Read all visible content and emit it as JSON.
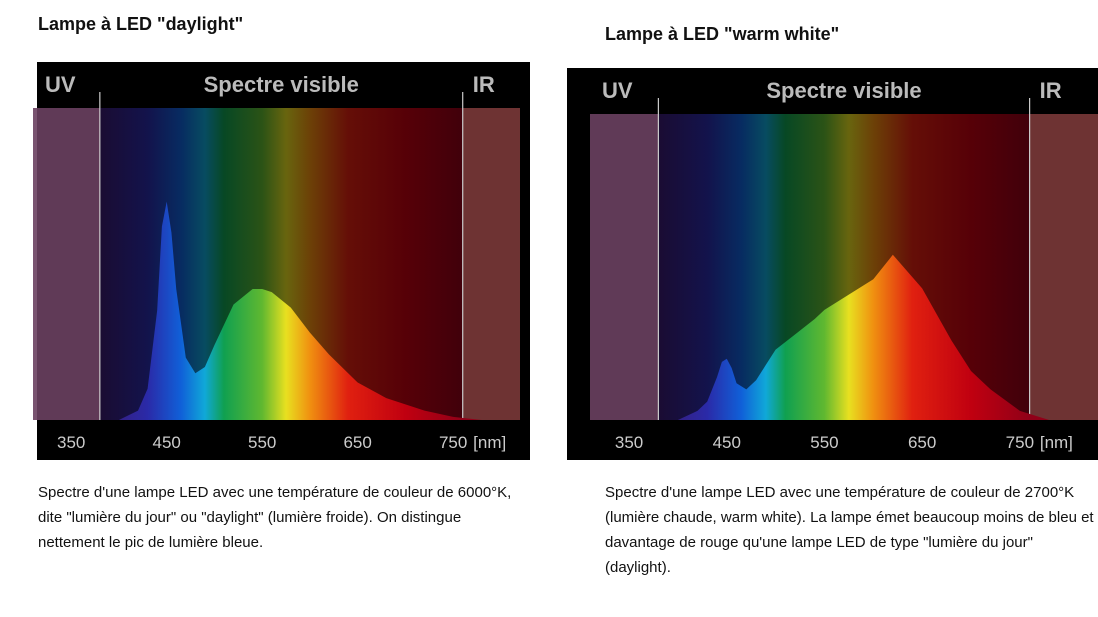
{
  "chart_data": [
    {
      "type": "area",
      "title": "Lampe à LED \"daylight\"",
      "caption": "Spectre d'une lampe LED avec une température de couleur de 6000°K, dite \"lumière du jour\" ou \"daylight\" (lumière froide). On distingue nettement le pic de lumière bleue.",
      "band_labels": [
        "UV",
        "Spectre visible",
        "IR"
      ],
      "visible_range": [
        380,
        760
      ],
      "x_unit": "[nm]",
      "x": [
        400,
        420,
        430,
        440,
        445,
        450,
        455,
        460,
        470,
        480,
        490,
        500,
        520,
        540,
        550,
        560,
        580,
        600,
        620,
        650,
        680,
        700,
        720,
        750,
        780
      ],
      "values": [
        0,
        3,
        10,
        35,
        62,
        70,
        60,
        42,
        20,
        15,
        17,
        24,
        37,
        42,
        42,
        41,
        36,
        28,
        21,
        12,
        7,
        5,
        3,
        1,
        0
      ],
      "xlim": [
        310,
        820
      ],
      "ylim": [
        0,
        100
      ],
      "xticks": [
        350,
        450,
        550,
        650,
        750
      ]
    },
    {
      "type": "area",
      "title": "Lampe à LED \"warm white\"",
      "caption": "Spectre d'une lampe LED avec une température de couleur de 2700°K (lumière chaude, warm white). La lampe émet beaucoup moins de bleu et davantage de rouge qu'une lampe LED de type \"lumière du jour\" (daylight).",
      "band_labels": [
        "UV",
        "Spectre visible",
        "IR"
      ],
      "visible_range": [
        380,
        760
      ],
      "x_unit": "[nm]",
      "x": [
        400,
        420,
        430,
        440,
        445,
        450,
        455,
        460,
        470,
        480,
        490,
        500,
        520,
        540,
        550,
        560,
        580,
        600,
        620,
        650,
        680,
        700,
        720,
        750,
        780
      ],
      "values": [
        0,
        3,
        6,
        14,
        19,
        20,
        17,
        12,
        10,
        13,
        18,
        23,
        28,
        33,
        36,
        38,
        42,
        46,
        54,
        43,
        26,
        16,
        10,
        3,
        0
      ],
      "xlim": [
        310,
        830
      ],
      "ylim": [
        0,
        100
      ],
      "xticks": [
        350,
        450,
        550,
        650,
        750
      ]
    }
  ]
}
